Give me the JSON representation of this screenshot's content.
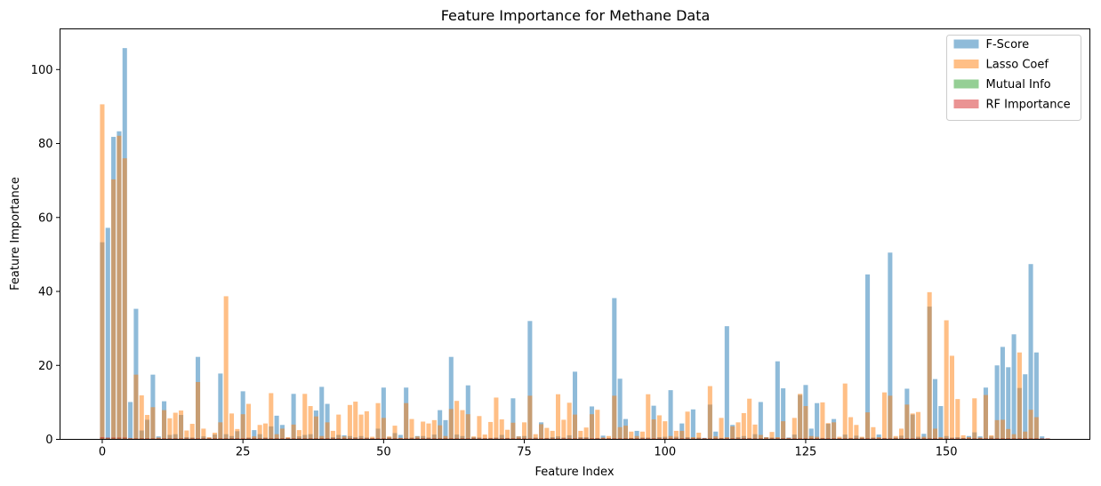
{
  "chart_data": {
    "type": "bar",
    "title": "Feature Importance for Methane Data",
    "xlabel": "Feature Index",
    "ylabel": "Feature Importance",
    "xlim": [
      -7.5,
      175.5
    ],
    "ylim": [
      0,
      111
    ],
    "xticks": [
      0,
      25,
      50,
      75,
      100,
      125,
      150
    ],
    "yticks": [
      0,
      20,
      40,
      60,
      80,
      100
    ],
    "legend_position": "top-right",
    "grid": false,
    "series": [
      {
        "name": "F-Score",
        "color": "#1f77b4",
        "values": [
          53.3,
          57.2,
          81.8,
          83.3,
          105.8,
          10.1,
          35.3,
          2.4,
          5.3,
          17.5,
          0.8,
          10.3,
          1.2,
          1.4,
          6.6,
          0.6,
          0.5,
          22.3,
          0.8,
          0.4,
          1.3,
          17.8,
          1.4,
          0.9,
          2.2,
          13,
          0.5,
          2.5,
          1.4,
          0.5,
          3.5,
          6.4,
          3.9,
          0.4,
          12.3,
          0.8,
          1.2,
          1.4,
          7.8,
          14.2,
          9.6,
          0.6,
          1.2,
          1.1,
          0.9,
          0.6,
          0.9,
          0.5,
          0.3,
          2.9,
          14,
          0.6,
          1.7,
          1.2,
          14,
          0.5,
          0.9,
          0.9,
          0.5,
          1.3,
          7.9,
          5.2,
          22.3,
          1.3,
          0.9,
          14.6,
          0.6,
          0.5,
          0.3,
          0.4,
          0.5,
          1.2,
          0.4,
          11.1,
          0.8,
          0.9,
          32,
          0.5,
          4.6,
          0.4,
          0.6,
          0.8,
          0.5,
          1.1,
          18.3,
          0.6,
          0.6,
          8.9,
          0.4,
          1,
          0.3,
          38.2,
          16.4,
          5.5,
          0.4,
          2.3,
          0.5,
          0.5,
          9.1,
          0.6,
          0.7,
          13.3,
          0.7,
          4.3,
          0.6,
          8.1,
          0.5,
          0.4,
          9.4,
          2.1,
          0.4,
          30.6,
          3.9,
          0.6,
          0.9,
          0.4,
          1.4,
          10.1,
          0.6,
          0.5,
          21.1,
          13.8,
          0.5,
          1.3,
          12,
          14.7,
          2.9,
          9.8,
          0.4,
          4.2,
          5.5,
          0.3,
          1.3,
          0.4,
          1,
          0.5,
          44.6,
          0.5,
          1.3,
          0.4,
          50.5,
          0.5,
          1,
          13.7,
          6.7,
          0.7,
          1.5,
          35.9,
          16.3,
          9,
          0.9,
          0.5,
          0.6,
          0.4,
          0.9,
          1.9,
          0.8,
          14,
          0.8,
          20,
          25,
          19.5,
          28.4,
          13.9,
          17.6,
          47.4,
          23.5,
          0.8
        ]
      },
      {
        "name": "Lasso Coef",
        "color": "#ff7f0e",
        "values": [
          90.6,
          0.3,
          70.3,
          82.1,
          76,
          0.3,
          17.5,
          11.9,
          6.6,
          8.7,
          0.5,
          7.9,
          5.7,
          7.2,
          7.8,
          2.4,
          4.2,
          15.5,
          2.9,
          0.6,
          1.8,
          4.6,
          38.7,
          7,
          2.8,
          6.8,
          9.6,
          0.8,
          3.9,
          4.3,
          12.5,
          1.4,
          2.9,
          0.6,
          4,
          2.5,
          12.3,
          9,
          6.2,
          0.9,
          4.6,
          2.3,
          6.7,
          0.8,
          9.3,
          10.2,
          6.7,
          7.6,
          0.7,
          9.8,
          5.8,
          0.8,
          3.7,
          0.4,
          9.8,
          5.5,
          0.8,
          4.8,
          4.3,
          5.2,
          3.8,
          0.9,
          8.2,
          10.4,
          7.9,
          6.8,
          0.8,
          6.3,
          1.3,
          4.7,
          11.3,
          5.4,
          2.6,
          4.5,
          0.8,
          4.6,
          11.8,
          1.4,
          4.1,
          3.1,
          2.3,
          12.2,
          5.3,
          9.9,
          6.7,
          2.3,
          3.2,
          6.8,
          8,
          0.5,
          0.9,
          11.8,
          3.3,
          3.7,
          2.1,
          0.9,
          2.1,
          12.2,
          5.4,
          6.5,
          4.9,
          0.9,
          2.3,
          2.3,
          7.5,
          0.6,
          1.8,
          0.3,
          14.4,
          0.8,
          5.8,
          0.6,
          3.5,
          4.6,
          7.1,
          11,
          4,
          1.2,
          0.6,
          2,
          0.6,
          4.9,
          0.4,
          5.8,
          12.3,
          9,
          0.9,
          0.7,
          10,
          4.4,
          4.6,
          0.7,
          15.1,
          6,
          3.9,
          0.7,
          7.3,
          3.3,
          0.6,
          12.7,
          11.8,
          0.9,
          2.9,
          9.4,
          7,
          7.4,
          0.7,
          39.8,
          2.9,
          0.6,
          32.2,
          22.6,
          10.9,
          1.1,
          0.6,
          11.1,
          0.5,
          12,
          1.1,
          5.2,
          5.3,
          2.8,
          1.4,
          23.5,
          2.1,
          8,
          6
        ]
      },
      {
        "name": "Mutual Info",
        "color": "#2ca02c",
        "values": [
          0.3,
          0.3,
          0.3,
          0.3,
          0.3,
          0.2,
          0.2,
          0.2,
          0.2,
          0.2,
          0.2,
          0.2,
          0.2,
          0.2,
          0.2,
          0.2,
          0.2,
          0.2,
          0.2,
          0.2,
          0.2,
          0.2,
          0.2,
          0.2,
          0.2,
          0.2,
          0.2,
          0.2,
          0.2,
          0.2,
          0.2,
          0.2,
          0.2,
          0.2,
          0.2,
          0.2,
          0.2,
          0.2,
          0.2,
          0.2,
          0.2,
          0.2,
          0.2,
          0.2,
          0.2,
          0.2,
          0.2,
          0.2,
          0.2,
          0.2,
          0.2,
          0.2,
          0.2,
          0.2,
          0.2,
          0.2,
          0.2,
          0.2,
          0.2,
          0.2,
          0.2,
          0.2,
          0.2,
          0.2,
          0.2,
          0.2,
          0.2,
          0.2,
          0.2,
          0.2,
          0.2,
          0.2,
          0.2,
          0.2,
          0.2,
          0.2,
          0.2,
          0.2,
          0.2,
          0.2,
          0.2,
          0.2,
          0.2,
          0.2,
          0.2,
          0.2,
          0.2,
          0.2,
          0.2,
          0.2,
          0.2,
          0.2,
          0.2,
          0.2,
          0.2,
          0.2,
          0.2,
          0.2,
          0.2,
          0.2,
          0.2,
          0.2,
          0.2,
          0.2,
          0.2,
          0.2,
          0.2,
          0.2,
          0.2,
          0.2,
          0.2,
          0.2,
          0.2,
          0.2,
          0.2,
          0.2,
          0.2,
          0.2,
          0.2,
          0.2,
          0.2,
          0.2,
          0.2,
          0.2,
          0.2,
          0.2,
          0.2,
          0.2,
          0.2,
          0.2,
          0.2,
          0.2,
          0.2,
          0.2,
          0.2,
          0.2,
          0.2,
          0.2,
          0.2,
          0.2,
          0.2,
          0.2,
          0.2,
          0.2,
          0.2,
          0.2,
          0.2,
          0.2,
          0.2,
          0.2,
          0.2,
          0.2,
          0.2,
          0.2,
          0.2,
          0.2,
          0.2,
          0.2,
          0.2,
          0.2,
          0.2,
          0.2,
          0.2,
          0.2,
          0.2,
          0.2,
          0.2,
          0.2,
          0.2
        ]
      },
      {
        "name": "RF Importance",
        "color": "#d62728",
        "values": [
          0.6,
          0.5,
          0.5,
          0.5,
          0.5,
          0.3,
          0.3,
          0.3,
          0.3,
          0.3,
          0.3,
          0.3,
          0.3,
          0.3,
          0.3,
          0.3,
          0.3,
          0.3,
          0.3,
          0.3,
          0.3,
          0.3,
          0.3,
          0.3,
          0.3,
          0.3,
          0.3,
          0.3,
          0.3,
          0.3,
          0.3,
          0.3,
          0.3,
          0.3,
          0.3,
          0.3,
          0.3,
          0.3,
          0.3,
          0.3,
          0.3,
          0.3,
          0.3,
          0.3,
          0.3,
          0.3,
          0.3,
          0.3,
          0.3,
          0.3,
          0.3,
          0.3,
          0.3,
          0.3,
          0.3,
          0.3,
          0.3,
          0.3,
          0.3,
          0.3,
          0.3,
          0.3,
          0.3,
          0.3,
          0.3,
          0.3,
          0.3,
          0.3,
          0.3,
          0.3,
          0.3,
          0.3,
          0.3,
          0.3,
          0.3,
          0.3,
          0.3,
          0.3,
          0.3,
          0.3,
          0.3,
          0.3,
          0.3,
          0.3,
          0.3,
          0.3,
          0.3,
          0.3,
          0.3,
          0.3,
          0.3,
          0.3,
          0.3,
          0.3,
          0.3,
          0.3,
          0.3,
          0.3,
          0.3,
          0.3,
          0.3,
          0.3,
          0.3,
          0.3,
          0.3,
          0.3,
          0.3,
          0.3,
          0.3,
          0.3,
          0.3,
          0.3,
          0.3,
          0.3,
          0.3,
          0.3,
          0.3,
          0.3,
          0.3,
          0.3,
          0.3,
          0.3,
          0.3,
          0.3,
          0.3,
          0.3,
          0.3,
          0.3,
          0.3,
          0.3,
          0.3,
          0.3,
          0.3,
          0.3,
          0.3,
          0.3,
          0.3,
          0.3,
          0.3,
          0.3,
          0.3,
          0.3,
          0.3,
          0.3,
          0.3,
          0.3,
          0.3,
          0.3,
          0.3,
          0.3,
          0.3,
          0.3,
          0.3,
          0.3,
          0.3,
          0.3,
          0.3,
          0.3,
          0.3,
          0.3,
          0.3,
          0.3,
          0.3,
          0.3,
          0.3,
          0.3,
          0.3,
          0.3,
          0.3
        ]
      }
    ]
  }
}
